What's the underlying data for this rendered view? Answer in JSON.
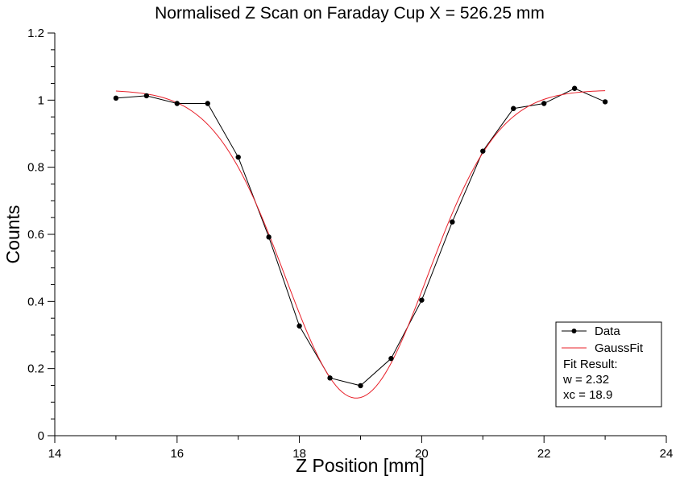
{
  "chart_data": {
    "type": "line",
    "title": "Normalised Z Scan on Faraday Cup X = 526.25 mm",
    "xlabel": "Z Position [mm]",
    "ylabel": "Counts",
    "xlim": [
      14,
      24
    ],
    "ylim": [
      0,
      1.2
    ],
    "x_ticks": [
      "14",
      "16",
      "18",
      "20",
      "22",
      "24"
    ],
    "y_ticks": [
      "0",
      "0.2",
      "0.4",
      "0.6",
      "0.8",
      "1",
      "1.2"
    ],
    "grid": false,
    "legend_position": "bottom-right",
    "series": [
      {
        "name": "Data",
        "color": "#000000",
        "marker": "circle",
        "x": [
          15,
          15.5,
          16,
          16.5,
          17,
          17.5,
          18,
          18.5,
          19,
          19.5,
          20,
          20.5,
          21,
          21.5,
          22,
          22.5,
          23
        ],
        "y": [
          1.006,
          1.013,
          0.99,
          0.99,
          0.83,
          0.592,
          0.327,
          0.172,
          0.149,
          0.23,
          0.404,
          0.637,
          0.848,
          0.975,
          0.99,
          1.035,
          0.995
        ]
      },
      {
        "name": "GaussFit",
        "color": "#e8202a",
        "marker": "none",
        "fit": {
          "baseline": 1.03,
          "amplitude": 0.918,
          "xc": 18.93,
          "w": 2.32
        },
        "x_range": [
          15,
          23
        ]
      }
    ],
    "annotations": [
      "Fit Result:",
      "w = 2.32",
      "xc = 18.9"
    ]
  }
}
